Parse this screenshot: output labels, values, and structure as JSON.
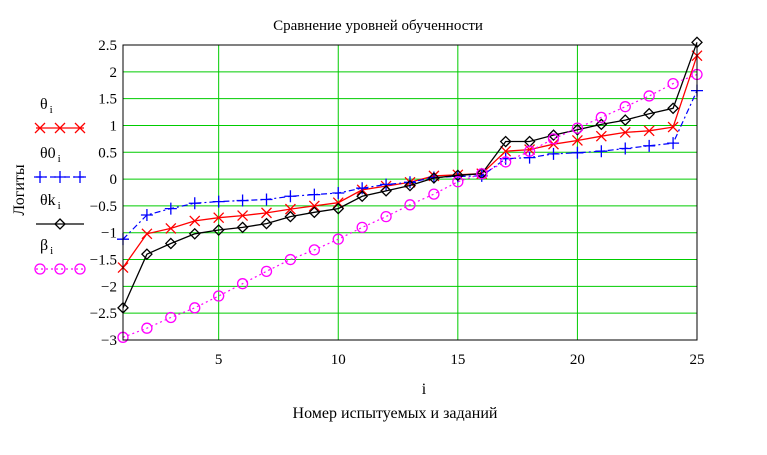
{
  "chart_data": {
    "type": "line",
    "title": "Сравнение уровней обученности",
    "xlabel": "Номер  испытуемых и заданий",
    "xvar": "i",
    "ylabel": "Логиты",
    "xlim": [
      1,
      25
    ],
    "ylim": [
      -3,
      2.5
    ],
    "xticks": [
      5,
      10,
      15,
      20,
      25
    ],
    "yticks": [
      2.5,
      2,
      1.5,
      1,
      0.5,
      0,
      -0.5,
      -1,
      -1.5,
      -2,
      -2.5,
      -3
    ],
    "ytick_labels": [
      "2.5",
      "2",
      "1.5",
      "1",
      "0.5",
      "0",
      "−0.5",
      "−1",
      "−1.5",
      "−2",
      "−2.5",
      "−3"
    ],
    "xtick_labels": [
      "5",
      "10",
      "15",
      "20",
      "25"
    ],
    "grid": true,
    "legend_position": "left",
    "x": [
      1,
      2,
      3,
      4,
      5,
      6,
      7,
      8,
      9,
      10,
      11,
      12,
      13,
      14,
      15,
      16,
      17,
      18,
      19,
      20,
      21,
      22,
      23,
      24,
      25
    ],
    "series": [
      {
        "name": "θ",
        "sub": "i",
        "color": "#ff0000",
        "line": "solid",
        "marker": "x",
        "values": [
          -1.65,
          -1.02,
          -0.92,
          -0.78,
          -0.72,
          -0.68,
          -0.63,
          -0.56,
          -0.5,
          -0.44,
          -0.2,
          -0.13,
          -0.06,
          0.06,
          0.08,
          0.1,
          0.52,
          0.55,
          0.65,
          0.72,
          0.8,
          0.87,
          0.9,
          0.97,
          2.3
        ]
      },
      {
        "name": "θ0",
        "sub": "i",
        "color": "#0000ff",
        "line": "dashdot",
        "marker": "+",
        "values": [
          -1.12,
          -0.67,
          -0.55,
          -0.45,
          -0.42,
          -0.4,
          -0.38,
          -0.32,
          -0.29,
          -0.26,
          -0.17,
          -0.1,
          -0.06,
          0.03,
          0.05,
          0.06,
          0.38,
          0.4,
          0.47,
          0.49,
          0.52,
          0.57,
          0.62,
          0.67,
          1.65
        ]
      },
      {
        "name": "θk",
        "sub": "i",
        "color": "#000000",
        "line": "solid",
        "marker": "diamond",
        "values": [
          -2.4,
          -1.4,
          -1.2,
          -1.02,
          -0.95,
          -0.9,
          -0.83,
          -0.7,
          -0.62,
          -0.55,
          -0.32,
          -0.22,
          -0.12,
          0.02,
          0.07,
          0.1,
          0.7,
          0.7,
          0.82,
          0.92,
          1.02,
          1.1,
          1.22,
          1.32,
          2.55
        ]
      },
      {
        "name": "β",
        "sub": "i",
        "color": "#ff00ff",
        "line": "dot",
        "marker": "circle",
        "values": [
          -2.95,
          -2.78,
          -2.58,
          -2.4,
          -2.18,
          -1.95,
          -1.72,
          -1.5,
          -1.32,
          -1.12,
          -0.9,
          -0.7,
          -0.48,
          -0.28,
          -0.05,
          0.1,
          0.32,
          0.52,
          0.75,
          0.95,
          1.15,
          1.35,
          1.55,
          1.78,
          1.95
        ]
      }
    ]
  }
}
